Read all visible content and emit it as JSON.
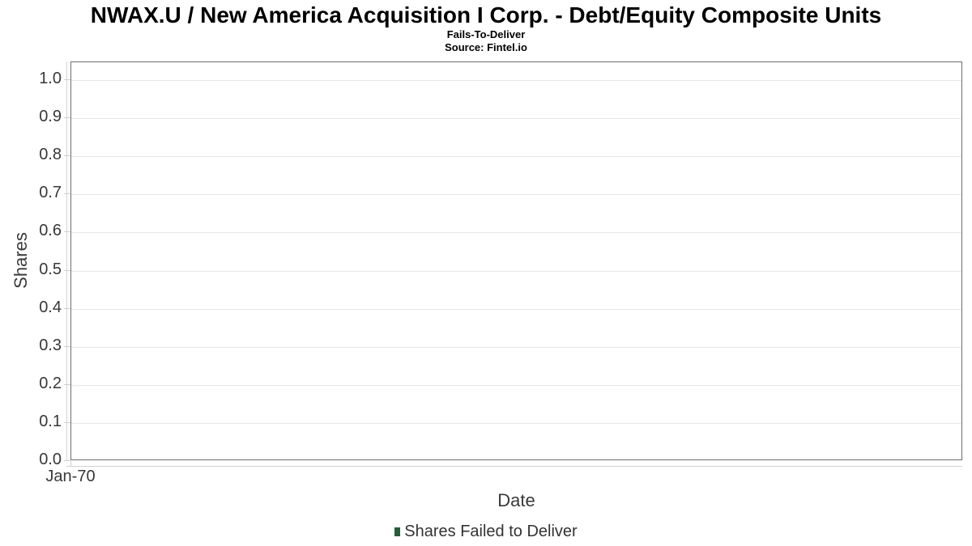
{
  "page": {
    "title": "NWAX.U / New America Acquisition I Corp. - Debt/Equity Composite Units",
    "subtitle": "Fails-To-Deliver",
    "source": "Source: Fintel.io"
  },
  "chart_data": {
    "type": "line",
    "title": "NWAX.U / New America Acquisition I Corp. - Debt/Equity Composite Units",
    "subtitle": "Fails-To-Deliver",
    "source": "Source: Fintel.io",
    "xlabel": "Date",
    "ylabel": "Shares",
    "x_ticks": [
      "Jan-70"
    ],
    "x_tick_fractions": [
      0
    ],
    "y_ticks": [
      "0.0",
      "0.1",
      "0.2",
      "0.3",
      "0.4",
      "0.5",
      "0.6",
      "0.7",
      "0.8",
      "0.9",
      "1.0"
    ],
    "ylim": [
      0,
      1.047
    ],
    "grid": "horizontal",
    "legend_position": "bottom",
    "legend": [
      {
        "label": "Shares Failed to Deliver",
        "color": "#275c38"
      }
    ],
    "series": [
      {
        "name": "Shares Failed to Deliver",
        "color": "#275c38",
        "x": [],
        "y": []
      }
    ]
  },
  "colors": {
    "background": "#ffffff",
    "plot_border": "#6e6e6e",
    "gridline": "#e7e7e7",
    "axis_line": "#d2d2d2",
    "tick_mark": "#cfcfcf",
    "title_text": "#000000",
    "tick_text": "#383838",
    "axis_title_text": "#3a3a3a",
    "legend_marker": "#275c38"
  }
}
